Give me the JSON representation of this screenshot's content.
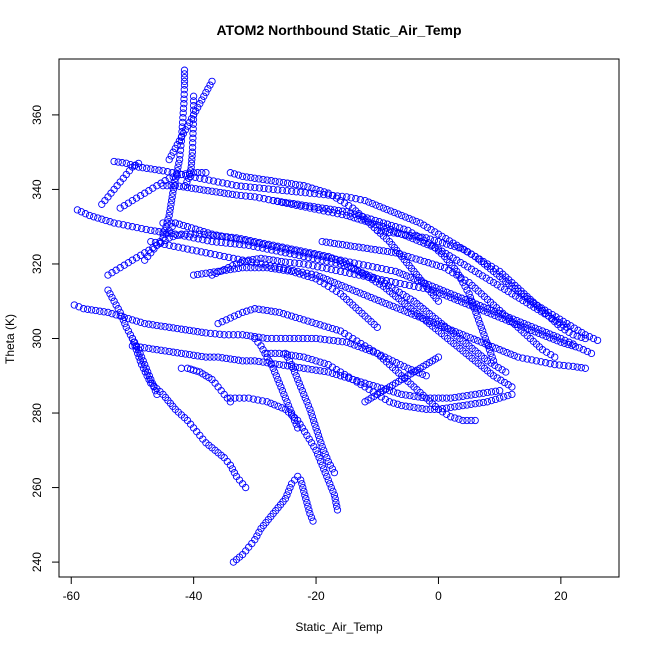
{
  "chart_data": {
    "type": "scatter",
    "title": "ATOM2 Northbound Static_Air_Temp",
    "xlabel": "Static_Air_Temp",
    "ylabel": "Theta (K)",
    "xlim": [
      -62,
      29.5
    ],
    "ylim": [
      236,
      375
    ],
    "xticks": [
      -60,
      -40,
      -20,
      0,
      20
    ],
    "yticks": [
      240,
      260,
      280,
      300,
      320,
      340,
      360
    ],
    "grid": false,
    "legend": "none",
    "marker": "open-circle",
    "color": "#0000ff",
    "series": [
      {
        "x": [
          -59.5,
          -58,
          -56,
          -54,
          -52,
          -50,
          -48,
          -46,
          -44,
          -42,
          -40,
          -38,
          -35,
          -32,
          -30,
          -28,
          -25,
          -20,
          -15,
          -10,
          -5,
          -2
        ],
        "y": [
          309,
          308,
          307.5,
          307,
          306,
          305,
          304,
          303.5,
          303,
          302.5,
          302,
          301.5,
          301,
          301,
          300.5,
          300,
          300,
          300,
          299,
          296,
          292,
          290
        ]
      },
      {
        "x": [
          -59,
          -57,
          -55,
          -53,
          -50,
          -47,
          -45,
          -43,
          -40,
          -37,
          -34,
          -31,
          -28,
          -25,
          -22,
          -19,
          -16,
          -13,
          -10,
          -7,
          -4,
          -1,
          2,
          5,
          8,
          11
        ],
        "y": [
          334.5,
          333,
          332,
          331,
          330,
          329,
          328.5,
          328,
          327,
          326,
          325.5,
          325,
          324,
          323,
          322,
          321,
          320,
          318,
          316,
          313,
          310,
          306,
          302,
          298,
          294,
          291
        ]
      },
      {
        "x": [
          -53,
          -51,
          -49,
          -47,
          -45,
          -42,
          -39,
          -36,
          -33,
          -30,
          -27,
          -24,
          -21,
          -18,
          -15,
          -12,
          -9,
          -6,
          -3,
          0,
          3,
          6,
          9,
          12,
          15,
          18,
          21,
          24,
          26
        ],
        "y": [
          347.5,
          347,
          346,
          345.5,
          345,
          344,
          343,
          342,
          341,
          340.5,
          340,
          339.5,
          339,
          338.5,
          338,
          337,
          335,
          333,
          331,
          328,
          325,
          322,
          318,
          314,
          310,
          307,
          304,
          301,
          299.5
        ]
      },
      {
        "x": [
          -41.5,
          -41.5,
          -41.6,
          -41.8,
          -42,
          -42.3,
          -42.8,
          -43.3,
          -43.7,
          -44,
          -44.5,
          -45
        ],
        "y": [
          372,
          368,
          363,
          358,
          353,
          348,
          344,
          340,
          336,
          333,
          330,
          328
        ]
      },
      {
        "x": [
          -40,
          -40,
          -40.1,
          -40.2,
          -40.4,
          -40.8,
          -41.4
        ],
        "y": [
          365,
          360,
          355,
          350,
          346,
          343,
          341
        ]
      },
      {
        "x": [
          -54,
          -52,
          -50,
          -48,
          -46,
          -44,
          -42,
          -39,
          -36,
          -33,
          -30,
          -27,
          -24,
          -21,
          -18,
          -15,
          -12,
          -9,
          -6,
          -3,
          0,
          3,
          6,
          9,
          12
        ],
        "y": [
          317,
          319,
          321,
          323,
          325,
          327,
          328,
          328,
          327.5,
          327,
          326,
          325,
          324,
          323,
          322,
          320,
          317,
          314,
          310,
          306,
          302,
          298,
          294,
          290,
          287
        ]
      },
      {
        "x": [
          -33.5,
          -32,
          -31,
          -30,
          -29,
          -27,
          -25,
          -24,
          -23,
          -22.5,
          -22,
          -21.5,
          -21,
          -20.5
        ],
        "y": [
          240,
          242,
          244,
          246,
          249,
          253,
          257,
          261,
          263,
          262,
          259,
          256,
          253,
          251
        ]
      },
      {
        "x": [
          -50,
          -48.5,
          -47,
          -45,
          -43,
          -41,
          -39.5,
          -38,
          -36.5,
          -35,
          -34,
          -33,
          -31.5
        ],
        "y": [
          300,
          293,
          288,
          285,
          281,
          278,
          275,
          272,
          270,
          268,
          266,
          263,
          260
        ]
      },
      {
        "x": [
          -34,
          -31,
          -28,
          -25,
          -23,
          -21.5,
          -20,
          -19,
          -18,
          -17,
          -16.5
        ],
        "y": [
          284,
          284,
          283,
          281,
          278,
          274,
          270,
          266,
          262,
          258,
          254
        ]
      },
      {
        "x": [
          -36,
          -34,
          -32,
          -30,
          -28,
          -26,
          -24,
          -22,
          -20,
          -18,
          -16,
          -14,
          -12,
          -10,
          -8,
          -6,
          -4,
          -2,
          0,
          2,
          4,
          6
        ],
        "y": [
          304,
          305.5,
          307,
          308,
          307.5,
          307,
          306,
          305,
          304,
          303,
          302,
          300,
          298,
          296,
          293,
          290,
          287,
          284,
          281,
          279,
          278,
          278
        ]
      },
      {
        "x": [
          -37,
          -35,
          -33,
          -31,
          -29,
          -27,
          -25,
          -22,
          -19,
          -16,
          -13,
          -10,
          -7,
          -4,
          -1,
          2,
          5,
          8,
          11,
          14,
          17,
          20,
          23,
          25
        ],
        "y": [
          317,
          318.5,
          320,
          321,
          321.5,
          321,
          320.5,
          320,
          319,
          318,
          317,
          316,
          315,
          314,
          313,
          311,
          309,
          307,
          305,
          303,
          301,
          299,
          297.5,
          296
        ]
      },
      {
        "x": [
          -45,
          -43,
          -41,
          -39,
          -37,
          -34,
          -31,
          -28,
          -25,
          -22,
          -19,
          -16,
          -13,
          -10,
          -7,
          -4,
          -1,
          2,
          5,
          8,
          11,
          14,
          17,
          20,
          22
        ],
        "y": [
          331,
          331,
          330,
          329,
          328,
          327,
          326,
          325,
          324,
          323,
          322,
          321,
          320,
          319,
          318,
          316,
          314,
          312,
          310,
          308,
          306,
          304,
          302,
          300,
          298.5
        ]
      },
      {
        "x": [
          -45,
          -43,
          -41,
          -39,
          -37,
          -35,
          -33,
          -30,
          -27,
          -24,
          -21,
          -18,
          -15,
          -12,
          -9,
          -6,
          -3,
          0,
          3,
          6,
          9,
          12,
          15,
          18,
          21
        ],
        "y": [
          341,
          341,
          340.5,
          340,
          339.5,
          339,
          338.5,
          338,
          337,
          336,
          335,
          334,
          333,
          331.5,
          330,
          328,
          326,
          324,
          321,
          318,
          315,
          312,
          309,
          306,
          303
        ]
      },
      {
        "x": [
          -50,
          -48,
          -46,
          -44,
          -42,
          -40,
          -38,
          -36,
          -34,
          -32,
          -30,
          -28,
          -26,
          -24,
          -22,
          -20,
          -18,
          -16,
          -14,
          -12,
          -10,
          -8,
          -6,
          -4,
          -2,
          0,
          2,
          4,
          6,
          8,
          10
        ],
        "y": [
          298,
          297.5,
          297,
          296.5,
          296,
          295.5,
          295,
          295,
          294.5,
          294,
          294,
          293.5,
          293,
          292.5,
          292,
          291.5,
          291,
          290,
          289,
          288,
          287,
          286,
          285,
          284.5,
          284,
          284,
          284,
          284.5,
          285,
          285.5,
          286
        ]
      },
      {
        "x": [
          -48,
          -47,
          -46,
          -45,
          -44,
          -43
        ],
        "y": [
          321,
          323,
          325,
          327,
          329,
          331
        ]
      },
      {
        "x": [
          -47,
          -44,
          -41,
          -38,
          -35,
          -32,
          -29,
          -26,
          -23,
          -20,
          -17,
          -14,
          -11,
          -8,
          -5,
          -2,
          1,
          4,
          7,
          10,
          13,
          16,
          19,
          22,
          24
        ],
        "y": [
          326,
          325,
          324,
          323,
          322,
          321,
          320,
          319,
          318,
          317,
          315,
          313,
          311,
          309,
          307,
          305,
          303,
          301,
          299,
          297,
          295,
          294,
          293,
          292.5,
          292
        ]
      },
      {
        "x": [
          -34,
          -32,
          -30,
          -28,
          -26,
          -24,
          -22,
          -20,
          -18,
          -16,
          -14,
          -12,
          -10,
          -8,
          -6,
          -4,
          -2,
          0
        ],
        "y": [
          344.5,
          343.5,
          343,
          342.5,
          342,
          341.5,
          341,
          340,
          339,
          337,
          335,
          332,
          329,
          326,
          322,
          318,
          314,
          310
        ]
      },
      {
        "x": [
          -27,
          -25,
          -23,
          -21,
          -19,
          -17,
          -15,
          -13,
          -11,
          -9,
          -7,
          -5,
          -3,
          -1,
          1,
          3,
          5,
          7,
          9
        ],
        "y": [
          337,
          336.5,
          336,
          335.5,
          335,
          334.5,
          334,
          333,
          332,
          331,
          330,
          329,
          327,
          325,
          322,
          318,
          312,
          303,
          294
        ]
      },
      {
        "x": [
          -19,
          -17,
          -15,
          -13,
          -11,
          -9,
          -7,
          -5,
          -3,
          -1,
          1,
          3,
          5,
          7,
          9,
          11,
          13,
          15,
          17,
          19
        ],
        "y": [
          326,
          325.5,
          325,
          324.5,
          324,
          323.5,
          323,
          322,
          321,
          320,
          319,
          317,
          315,
          312,
          309,
          306,
          303,
          300,
          297,
          295
        ]
      },
      {
        "x": [
          -28,
          -26,
          -24,
          -22,
          -20,
          -18,
          -16,
          -14,
          -12,
          -10,
          -8,
          -6,
          -4,
          -2,
          0,
          2,
          4,
          6,
          8,
          10,
          12
        ],
        "y": [
          296,
          296,
          295.5,
          295,
          294,
          293,
          291,
          289,
          287,
          285,
          283,
          282,
          281.5,
          281,
          281,
          281.5,
          282,
          282.5,
          283,
          284,
          285
        ]
      },
      {
        "x": [
          -42,
          -41,
          -40,
          -39,
          -38,
          -37,
          -36,
          -35,
          -34
        ],
        "y": [
          292,
          292,
          291.5,
          291,
          290,
          289,
          287,
          285,
          283
        ]
      },
      {
        "x": [
          -54,
          -53,
          -52,
          -51,
          -50,
          -49,
          -48,
          -47,
          -46
        ],
        "y": [
          313,
          310,
          307,
          303,
          300,
          297,
          293,
          289,
          285
        ]
      },
      {
        "x": [
          -30,
          -29,
          -28,
          -27,
          -26,
          -25,
          -24,
          -23
        ],
        "y": [
          300,
          298,
          295,
          292,
          288,
          284,
          280,
          276
        ]
      },
      {
        "x": [
          -25,
          -24,
          -23,
          -22,
          -21,
          -20,
          -19,
          -18,
          -17
        ],
        "y": [
          296,
          293,
          289,
          285,
          281,
          276,
          271,
          267,
          264
        ]
      },
      {
        "x": [
          -12,
          -11,
          -10,
          -9,
          -8,
          -7,
          -6,
          -5,
          -4,
          -3,
          -2,
          -1,
          0
        ],
        "y": [
          283,
          284,
          285,
          286,
          287,
          288,
          289,
          290,
          291,
          292,
          293,
          294,
          295
        ]
      },
      {
        "x": [
          -10,
          -8,
          -6,
          -4,
          -2,
          0,
          2,
          4,
          6,
          8,
          10,
          12,
          14,
          16,
          18,
          20,
          22,
          24
        ],
        "y": [
          329,
          328.5,
          328,
          327.5,
          327,
          326,
          325,
          324,
          322,
          320,
          318,
          315,
          312,
          309,
          306,
          303,
          301,
          300
        ]
      },
      {
        "x": [
          -52,
          -50,
          -48,
          -46,
          -44,
          -42,
          -40,
          -38
        ],
        "y": [
          335,
          337,
          339,
          341,
          343,
          344,
          344.5,
          344.5
        ]
      },
      {
        "x": [
          -55,
          -54,
          -53,
          -52,
          -51,
          -50,
          -49
        ],
        "y": [
          336,
          338,
          340,
          342,
          344,
          346,
          347
        ]
      },
      {
        "x": [
          -44,
          -43,
          -42,
          -41,
          -40,
          -39,
          -38,
          -37
        ],
        "y": [
          348,
          351,
          354,
          357,
          360,
          363,
          366,
          369
        ]
      },
      {
        "x": [
          -40,
          -38,
          -36,
          -34,
          -32,
          -30,
          -28,
          -26,
          -24,
          -22,
          -20,
          -18,
          -16,
          -14,
          -12,
          -10
        ],
        "y": [
          317,
          317.5,
          318,
          318.5,
          319,
          319,
          319,
          318.5,
          318,
          317,
          316,
          314,
          312,
          309,
          306,
          303
        ]
      }
    ]
  }
}
